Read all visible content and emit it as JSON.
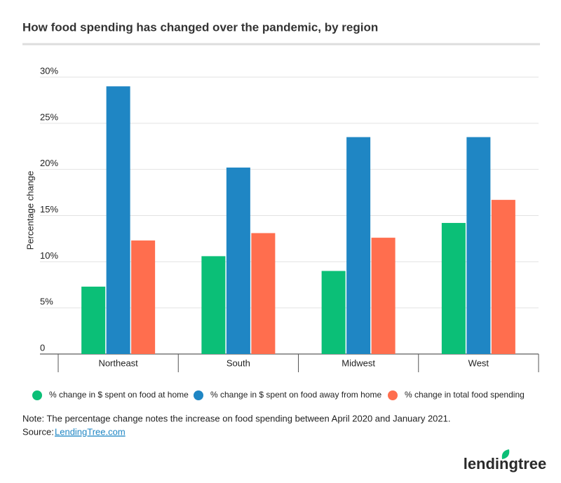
{
  "chart_data": {
    "type": "bar",
    "title": "How food spending has changed over the pandemic, by region",
    "y_label": "Percentage change",
    "categories": [
      "Northeast",
      "South",
      "Midwest",
      "West"
    ],
    "series": [
      {
        "name": "% change in $ spent on food at home",
        "color": "#0bbf77",
        "values": [
          7.3,
          10.6,
          9.0,
          14.2
        ]
      },
      {
        "name": "% change in $ spent on food away from home",
        "color": "#1f86c4",
        "values": [
          29.0,
          20.2,
          23.5,
          23.5
        ]
      },
      {
        "name": "% change in total food spending",
        "color": "#ff6e4e",
        "values": [
          12.3,
          13.1,
          12.6,
          16.7
        ]
      }
    ],
    "ylim": [
      0,
      30
    ],
    "yticks": [
      0,
      {
        "value": 5,
        "label": "5%"
      },
      {
        "value": 10,
        "label": "10%"
      },
      {
        "value": 15,
        "label": "15%"
      },
      {
        "value": 20,
        "label": "20%"
      },
      {
        "value": 25,
        "label": "25%"
      },
      {
        "value": 30,
        "label": "30%"
      }
    ],
    "grid": true,
    "note": "Note: The percentage change notes the increase on food spending between April 2020 and January 2021.",
    "source_label": "Source:",
    "source_link": "LendingTree.com",
    "logo": "lendingtree"
  }
}
